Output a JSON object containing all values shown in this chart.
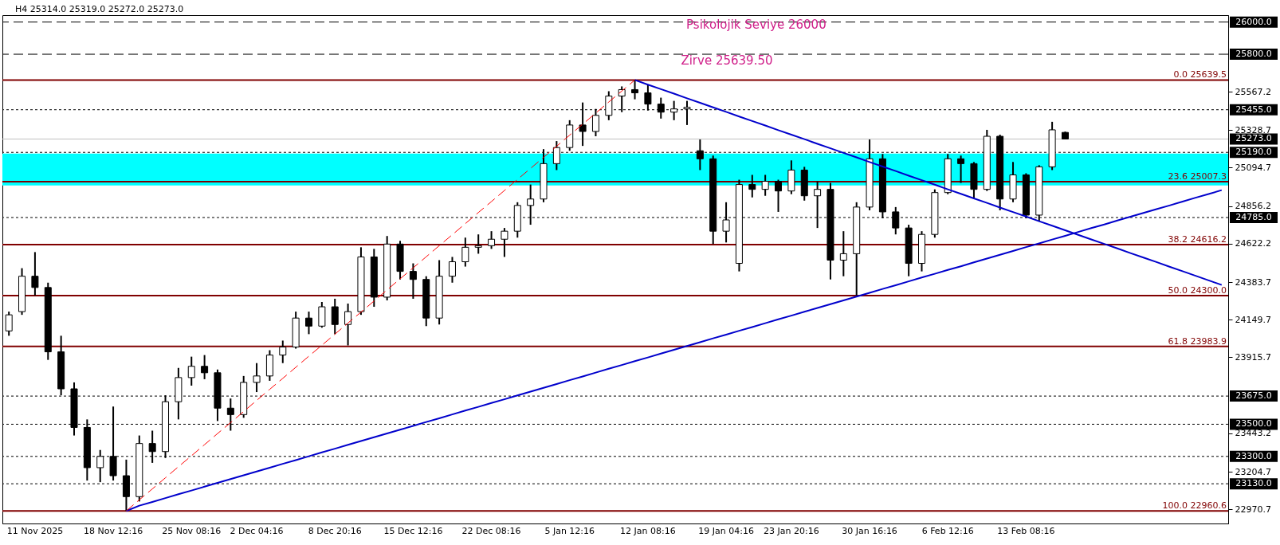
{
  "chart_data": {
    "type": "candlestick",
    "title": "H4  25314.0 25319.0 25272.0 25273.0",
    "categories": [
      null,
      null,
      "11 Nov 2025",
      null,
      null,
      null,
      null,
      null,
      "18 Nov 12:16",
      null,
      null,
      null,
      null,
      null,
      "25 Nov 08:16",
      null,
      null,
      null,
      null,
      "2 Dec 04:16",
      null,
      null,
      null,
      null,
      null,
      "8 Dec 20:16",
      null,
      null,
      null,
      null,
      null,
      "15 Dec 12:16",
      null,
      null,
      null,
      null,
      null,
      "22 Dec 08:16",
      null,
      null,
      null,
      null,
      null,
      "5 Jan 12:16",
      null,
      null,
      null,
      null,
      null,
      "12 Jan 08:16",
      null,
      null,
      null,
      null,
      null,
      "19 Jan 04:16",
      null,
      null,
      null,
      null,
      "23 Jan 20:16",
      null,
      null,
      null,
      null,
      null,
      "30 Jan 16:16",
      null,
      null,
      null,
      null,
      null,
      "6 Feb 12:16",
      null,
      null,
      null,
      null,
      null,
      "13 Feb 08:16",
      null,
      null,
      null,
      null,
      null,
      null,
      null,
      null,
      null,
      null,
      null,
      null,
      null,
      null,
      null
    ],
    "ohlc": [
      [
        24080,
        24200,
        24050,
        24180
      ],
      [
        24200,
        24470,
        24180,
        24420
      ],
      [
        24420,
        24570,
        24300,
        24350
      ],
      [
        24350,
        24380,
        23900,
        23950
      ],
      [
        23950,
        24050,
        23680,
        23720
      ],
      [
        23720,
        23760,
        23430,
        23480
      ],
      [
        23480,
        23530,
        23150,
        23230
      ],
      [
        23230,
        23340,
        23140,
        23300
      ],
      [
        23300,
        23610,
        23150,
        23180
      ],
      [
        23180,
        23280,
        22960.6,
        23050
      ],
      [
        23050,
        23430,
        23020,
        23380
      ],
      [
        23380,
        23460,
        23260,
        23330
      ],
      [
        23330,
        23680,
        23290,
        23640
      ],
      [
        23640,
        23850,
        23530,
        23790
      ],
      [
        23790,
        23920,
        23740,
        23860
      ],
      [
        23860,
        23930,
        23780,
        23820
      ],
      [
        23820,
        23840,
        23520,
        23600
      ],
      [
        23600,
        23660,
        23460,
        23560
      ],
      [
        23560,
        23800,
        23540,
        23760
      ],
      [
        23760,
        23880,
        23700,
        23800
      ],
      [
        23800,
        23960,
        23770,
        23930
      ],
      [
        23930,
        24020,
        23880,
        23980
      ],
      [
        23980,
        24200,
        23970,
        24160
      ],
      [
        24160,
        24200,
        24060,
        24110
      ],
      [
        24110,
        24260,
        24100,
        24230
      ],
      [
        24230,
        24280,
        24060,
        24120
      ],
      [
        24120,
        24250,
        23990,
        24200
      ],
      [
        24200,
        24600,
        24180,
        24540
      ],
      [
        24540,
        24590,
        24230,
        24290
      ],
      [
        24290,
        24670,
        24270,
        24620
      ],
      [
        24620,
        24640,
        24400,
        24450
      ],
      [
        24450,
        24500,
        24280,
        24400
      ],
      [
        24400,
        24420,
        24110,
        24160
      ],
      [
        24160,
        24520,
        24120,
        24420
      ],
      [
        24420,
        24540,
        24380,
        24510
      ],
      [
        24510,
        24660,
        24480,
        24600
      ],
      [
        24600,
        24680,
        24560,
        24610
      ],
      [
        24610,
        24700,
        24590,
        24650
      ],
      [
        24650,
        24720,
        24540,
        24700
      ],
      [
        24700,
        24880,
        24660,
        24860
      ],
      [
        24860,
        24990,
        24740,
        24900
      ],
      [
        24900,
        25210,
        24880,
        25120
      ],
      [
        25120,
        25260,
        25080,
        25220
      ],
      [
        25220,
        25390,
        25200,
        25360
      ],
      [
        25360,
        25500,
        25230,
        25320
      ],
      [
        25320,
        25460,
        25290,
        25420
      ],
      [
        25420,
        25570,
        25390,
        25540
      ],
      [
        25540,
        25600,
        25440,
        25580
      ],
      [
        25580,
        25639.5,
        25520,
        25560
      ],
      [
        25560,
        25610,
        25450,
        25490
      ],
      [
        25490,
        25530,
        25400,
        25440
      ],
      [
        25440,
        25510,
        25390,
        25460
      ],
      [
        25460,
        25510,
        25360,
        25470
      ],
      [
        25200,
        25270,
        25080,
        25150
      ],
      [
        25150,
        25170,
        24620,
        24700
      ],
      [
        24700,
        24880,
        24630,
        24770
      ],
      [
        24500,
        25020,
        24450,
        24990
      ],
      [
        24990,
        25050,
        24910,
        24960
      ],
      [
        24960,
        25050,
        24920,
        25010
      ],
      [
        25010,
        25020,
        24820,
        24950
      ],
      [
        24950,
        25140,
        24930,
        25080
      ],
      [
        25080,
        25100,
        24890,
        24920
      ],
      [
        24920,
        25010,
        24720,
        24960
      ],
      [
        24960,
        25000,
        24400,
        24520
      ],
      [
        24520,
        24700,
        24420,
        24560
      ],
      [
        24560,
        24880,
        24300,
        24850
      ],
      [
        24850,
        25270,
        24830,
        25150
      ],
      [
        25150,
        25180,
        24780,
        24820
      ],
      [
        24820,
        24850,
        24680,
        24720
      ],
      [
        24720,
        24740,
        24420,
        24500
      ],
      [
        24500,
        24700,
        24450,
        24680
      ],
      [
        24680,
        24960,
        24660,
        24940
      ],
      [
        24940,
        25180,
        24930,
        25150
      ],
      [
        25150,
        25170,
        25000,
        25120
      ],
      [
        25120,
        25130,
        24900,
        24960
      ],
      [
        24960,
        25330,
        24950,
        25290
      ],
      [
        25290,
        25300,
        24830,
        24900
      ],
      [
        24900,
        25130,
        24880,
        25050
      ],
      [
        25050,
        25060,
        24780,
        24800
      ],
      [
        24800,
        25110,
        24760,
        25100
      ],
      [
        25100,
        25380,
        25080,
        25330
      ],
      [
        25314.0,
        25319.0,
        25272.0,
        25273.0
      ],
      null,
      null,
      null,
      null,
      null,
      null,
      null,
      null,
      null,
      null,
      null,
      null
    ],
    "color": "#000000",
    "series": [
      {
        "type": "line",
        "color": "#0000cc",
        "line_style": "solid",
        "values": [
          null,
          null,
          null,
          null,
          null,
          null,
          null,
          null,
          null,
          22961,
          22994,
          23017,
          23041,
          23065,
          23088,
          23112,
          23136,
          23159,
          23183,
          23206,
          23230,
          23254,
          23277,
          23301,
          23325,
          23348,
          23372,
          23396,
          23419,
          23443,
          23466,
          23490,
          23514,
          23537,
          23561,
          23585,
          23608,
          23632,
          23655,
          23679,
          23703,
          23726,
          23750,
          23774,
          23797,
          23821,
          23845,
          23868,
          23892,
          23915,
          23939,
          23963,
          23986,
          24010,
          24034,
          24057,
          24081,
          24104,
          24128,
          24152,
          24175,
          24199,
          24223,
          24246,
          24270,
          24293,
          24317,
          24341,
          24364,
          24388,
          24412,
          24435,
          24459,
          24482,
          24506,
          24530,
          24553,
          24577,
          24601,
          24624,
          24648,
          24671,
          24695,
          24719,
          24742,
          24766,
          24790,
          24813,
          24837,
          24860,
          24884,
          24908,
          24931,
          24955
        ]
      },
      {
        "type": "line",
        "color": "#0000cc",
        "line_style": "solid",
        "values": [
          null,
          null,
          null,
          null,
          null,
          null,
          null,
          null,
          null,
          null,
          null,
          null,
          null,
          null,
          null,
          null,
          null,
          null,
          null,
          null,
          null,
          null,
          null,
          null,
          null,
          null,
          null,
          null,
          null,
          null,
          null,
          null,
          null,
          null,
          null,
          null,
          null,
          null,
          null,
          null,
          null,
          null,
          null,
          null,
          null,
          null,
          null,
          null,
          25640,
          25611,
          25583,
          25555,
          25526,
          25498,
          25470,
          25442,
          25413,
          25385,
          25357,
          25328,
          25300,
          25272,
          25243,
          25215,
          25187,
          25159,
          25130,
          25102,
          25074,
          25045,
          25017,
          24989,
          24960,
          24932,
          24904,
          24876,
          24847,
          24819,
          24791,
          24762,
          24734,
          24706,
          24677,
          24649,
          24621,
          24593,
          24564,
          24536,
          24508,
          24479,
          24451,
          24423,
          24394,
          24366
        ]
      },
      {
        "type": "line",
        "color": "#ff0000",
        "line_style": "dashed",
        "values": [
          null,
          null,
          null,
          null,
          null,
          null,
          null,
          null,
          null,
          22961,
          23030,
          23098,
          23167,
          23236,
          23304,
          23373,
          23442,
          23510,
          23579,
          23648,
          23717,
          23785,
          23854,
          23923,
          23991,
          24060,
          24129,
          24197,
          24266,
          24335,
          24404,
          24472,
          24541,
          24610,
          24678,
          24747,
          24816,
          24884,
          24953,
          25022,
          25090,
          25159,
          25228,
          25297,
          25365,
          25434,
          25503,
          25571,
          25640,
          null,
          null,
          null,
          null,
          null,
          null,
          null,
          null,
          null,
          null,
          null,
          null,
          null,
          null,
          null,
          null,
          null,
          null,
          null,
          null,
          null,
          null,
          null,
          null,
          null,
          null,
          null,
          null,
          null,
          null,
          null,
          null,
          null,
          null,
          null,
          null,
          null,
          null,
          null,
          null,
          null,
          null,
          null,
          null,
          null
        ]
      }
    ],
    "ylim": [
      22883,
      26043
    ],
    "yticks": [
      25567.2,
      25328.7,
      25094.7,
      24856.2,
      24622.2,
      24383.7,
      24149.7,
      23915.7,
      23443.2,
      23204.7,
      22970.7
    ],
    "ref_lines": [
      {
        "axis": "y",
        "value": 26000,
        "label": "26000.0",
        "color": "#000000",
        "line_style": "dashed"
      },
      {
        "axis": "y",
        "value": 25800,
        "label": "25800.0",
        "color": "#000000",
        "line_style": "dashed"
      },
      {
        "axis": "y",
        "value": 25455,
        "label": "25455.0",
        "color": "#000000",
        "line_style": "dotted"
      },
      {
        "axis": "y",
        "value": 25273,
        "label": "25273.0",
        "color": "#c0c0c0",
        "line_style": "solid"
      },
      {
        "axis": "y",
        "value": 25190,
        "label": "25190.0",
        "color": "#000000",
        "line_style": "dotted"
      },
      {
        "axis": "y",
        "value": 24785,
        "label": "24785.0",
        "color": "#000000",
        "line_style": "dotted"
      },
      {
        "axis": "y",
        "value": 23675,
        "label": "23675.0",
        "color": "#000000",
        "line_style": "dotted"
      },
      {
        "axis": "y",
        "value": 23500,
        "label": "23500.0",
        "color": "#000000",
        "line_style": "dotted"
      },
      {
        "axis": "y",
        "value": 23300,
        "label": "23300.0",
        "color": "#000000",
        "line_style": "dotted"
      },
      {
        "axis": "y",
        "value": 23130,
        "label": "23130.0",
        "color": "#000000",
        "line_style": "dotted"
      },
      {
        "axis": "y",
        "value": 25639.5,
        "label": "0.0 25639.5",
        "color": "#800000",
        "line_style": "solid"
      },
      {
        "axis": "y",
        "value": 25007.3,
        "label": "23.6 25007.3",
        "color": "#800000",
        "line_style": "solid"
      },
      {
        "axis": "y",
        "value": 24616.2,
        "label": "38.2 24616.2",
        "color": "#800000",
        "line_style": "solid"
      },
      {
        "axis": "y",
        "value": 24300.0,
        "label": "50.0 24300.0",
        "color": "#800000",
        "line_style": "solid"
      },
      {
        "axis": "y",
        "value": 23983.9,
        "label": "61.8 23983.9",
        "color": "#800000",
        "line_style": "solid"
      },
      {
        "axis": "y",
        "value": 22960.6,
        "label": "100.0 22960.6",
        "color": "#800000",
        "line_style": "solid"
      }
    ],
    "bands": [
      {
        "axis": "y",
        "from": 24984,
        "to": 25182,
        "color": "#00ffff"
      }
    ],
    "annotations": [
      "Psikolojik Seviye 26000",
      "Zirve 25639.50"
    ],
    "grid": false
  }
}
